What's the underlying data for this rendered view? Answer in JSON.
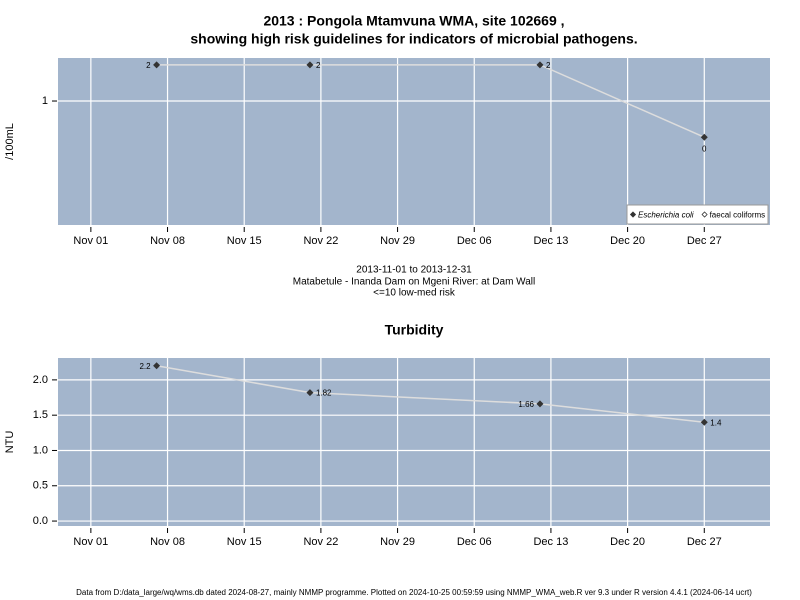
{
  "chart_data": [
    {
      "type": "line",
      "title": "2013 : Pongola Mtamvuna WMA, site 102669 ,",
      "subtitle": "showing high risk guidelines for indicators of microbial pathogens.",
      "ylabel": "/100mL",
      "log_scale": true,
      "grid": true,
      "legend": "bottom-right",
      "x": [
        "2013-11-07",
        "2013-11-21",
        "2013-12-12",
        "2013-12-27"
      ],
      "xlim": [
        "2013-10-29",
        "2014-01-02"
      ],
      "xticks": [
        {
          "value": "2013-11-01",
          "label": "Nov 01"
        },
        {
          "value": "2013-11-08",
          "label": "Nov 08"
        },
        {
          "value": "2013-11-15",
          "label": "Nov 15"
        },
        {
          "value": "2013-11-22",
          "label": "Nov 22"
        },
        {
          "value": "2013-11-29",
          "label": "Nov 29"
        },
        {
          "value": "2013-12-06",
          "label": "Dec 06"
        },
        {
          "value": "2013-12-13",
          "label": "Dec 13"
        },
        {
          "value": "2013-12-20",
          "label": "Dec 20"
        },
        {
          "value": "2013-12-27",
          "label": "Dec 27"
        }
      ],
      "ylim": [
        0.093,
        2.28
      ],
      "yticks": [
        1
      ],
      "series": [
        {
          "name": "Escherichia coli",
          "color": "#333333",
          "line_color": "#dddddd",
          "values": [
            2,
            2,
            2,
            0.5
          ],
          "value_labels": [
            "2",
            "2",
            "2",
            "0"
          ]
        },
        {
          "name": "faecal coliforms",
          "color": "#333333",
          "values": [
            null,
            null,
            null,
            null
          ]
        }
      ],
      "caption": [
        "2013-11-01 to 2013-12-31",
        "Matabetule - Inanda Dam on Mgeni River: at Dam Wall",
        "<=10 low-med risk"
      ]
    },
    {
      "type": "line",
      "title": "Turbidity",
      "ylabel": "NTU",
      "grid": true,
      "x": [
        "2013-11-07",
        "2013-11-21",
        "2013-12-12",
        "2013-12-27"
      ],
      "xlim": [
        "2013-10-29",
        "2014-01-02"
      ],
      "xticks": [
        {
          "value": "2013-11-01",
          "label": "Nov 01"
        },
        {
          "value": "2013-11-08",
          "label": "Nov 08"
        },
        {
          "value": "2013-11-15",
          "label": "Nov 15"
        },
        {
          "value": "2013-11-22",
          "label": "Nov 22"
        },
        {
          "value": "2013-11-29",
          "label": "Nov 29"
        },
        {
          "value": "2013-12-06",
          "label": "Dec 06"
        },
        {
          "value": "2013-12-13",
          "label": "Dec 13"
        },
        {
          "value": "2013-12-20",
          "label": "Dec 20"
        },
        {
          "value": "2013-12-27",
          "label": "Dec 27"
        }
      ],
      "ylim": [
        -0.07,
        2.31
      ],
      "yticks": [
        {
          "value": 0,
          "label": "0.0"
        },
        {
          "value": 0.5,
          "label": "0.5"
        },
        {
          "value": 1,
          "label": "1.0"
        },
        {
          "value": 1.5,
          "label": "1.5"
        },
        {
          "value": 2,
          "label": "2.0"
        }
      ],
      "series": [
        {
          "name": "Turbidity",
          "color": "#333333",
          "line_color": "#dddddd",
          "values": [
            2.2,
            1.82,
            1.66,
            1.4
          ]
        }
      ]
    }
  ],
  "footer": "Data from D:/data_large/wq/wms.db dated 2024-08-27, mainly NMMP programme. Plotted on 2024-10-25 00:59:59 using NMMP_WMA_web.R ver 9.3 under R version 4.4.1 (2024-06-14 ucrt)"
}
